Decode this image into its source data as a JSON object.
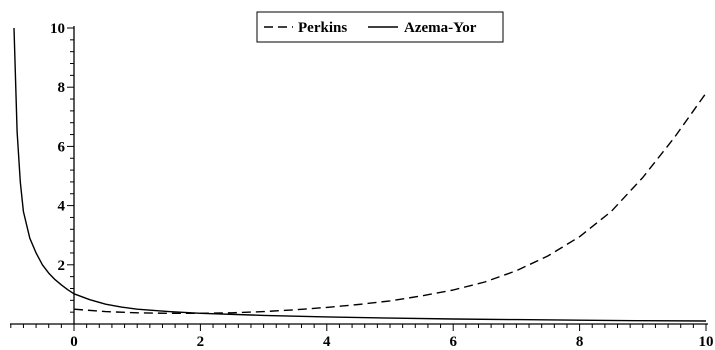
{
  "chart_data": {
    "type": "line",
    "title": "",
    "xlabel": "",
    "ylabel": "",
    "xlim": [
      -1,
      10
    ],
    "ylim": [
      0,
      10
    ],
    "grid": false,
    "legend_position": "top-center",
    "x_ticks": [
      0,
      2,
      4,
      6,
      8,
      10
    ],
    "y_ticks": [
      2,
      4,
      6,
      8,
      10
    ],
    "x_tick_labels": [
      "0",
      "2",
      "4",
      "6",
      "8",
      "10"
    ],
    "y_tick_labels": [
      "2",
      "4",
      "6",
      "8",
      "10"
    ],
    "series": [
      {
        "name": "Perkins",
        "style": "dashed",
        "color": "#000000",
        "x": [
          0,
          0.5,
          1,
          1.5,
          2,
          2.5,
          3,
          3.5,
          4,
          4.5,
          5,
          5.5,
          6,
          6.5,
          7,
          7.5,
          8,
          8.5,
          9,
          9.5,
          10
        ],
        "y": [
          0.5,
          0.42,
          0.38,
          0.36,
          0.36,
          0.38,
          0.42,
          0.48,
          0.56,
          0.66,
          0.78,
          0.95,
          1.15,
          1.42,
          1.8,
          2.3,
          2.95,
          3.8,
          4.95,
          6.3,
          7.8
        ]
      },
      {
        "name": "Azema-Yor",
        "style": "solid",
        "color": "#000000",
        "x": [
          -0.95,
          -0.9,
          -0.85,
          -0.8,
          -0.7,
          -0.6,
          -0.5,
          -0.4,
          -0.3,
          -0.2,
          -0.1,
          0,
          0.25,
          0.5,
          0.75,
          1,
          1.5,
          2,
          3,
          4,
          5,
          6,
          7,
          8,
          9,
          10
        ],
        "y": [
          10,
          6.5,
          4.8,
          3.8,
          2.9,
          2.4,
          2.0,
          1.72,
          1.5,
          1.32,
          1.16,
          1.02,
          0.82,
          0.67,
          0.57,
          0.5,
          0.42,
          0.36,
          0.29,
          0.24,
          0.2,
          0.17,
          0.15,
          0.13,
          0.11,
          0.1
        ]
      }
    ]
  }
}
